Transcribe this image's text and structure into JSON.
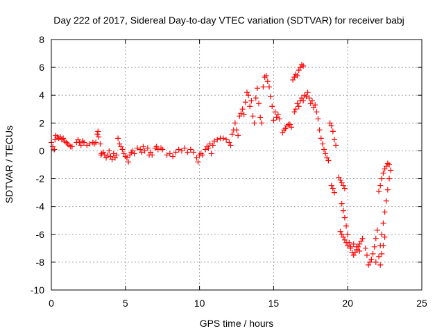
{
  "chart_data": {
    "type": "scatter",
    "title": "Day 222 of 2017, Sidereal Day-to-day VTEC variation (SDTVAR) for receiver babj",
    "xlabel": "GPS time / hours",
    "ylabel": "SDTVAR / TECUs",
    "xlim": [
      0,
      25
    ],
    "ylim": [
      -10,
      8
    ],
    "xticks": [
      0,
      5,
      10,
      15,
      20,
      25
    ],
    "yticks": [
      -10,
      -8,
      -6,
      -4,
      -2,
      0,
      2,
      4,
      6,
      8
    ],
    "xtick_labels": [
      "0",
      "5",
      "10",
      "15",
      "20",
      "25"
    ],
    "ytick_labels": [
      "-10",
      "-8",
      "-6",
      "-4",
      "-2",
      "0",
      "2",
      "4",
      "6",
      "8"
    ],
    "grid": true,
    "marker": "+",
    "color": "#ff0000",
    "series": [
      {
        "name": "babj",
        "points": [
          [
            0.0,
            0.6
          ],
          [
            0.1,
            0.3
          ],
          [
            0.2,
            0.1
          ],
          [
            0.25,
            0.8
          ],
          [
            0.3,
            1.1
          ],
          [
            0.4,
            1.0
          ],
          [
            0.5,
            0.9
          ],
          [
            0.6,
            1.0
          ],
          [
            0.7,
            0.8
          ],
          [
            0.8,
            0.9
          ],
          [
            0.9,
            0.7
          ],
          [
            1.0,
            0.6
          ],
          [
            1.1,
            0.5
          ],
          [
            1.2,
            0.4
          ],
          [
            1.3,
            0.3
          ],
          [
            1.4,
            0.3
          ],
          [
            1.7,
            0.6
          ],
          [
            1.8,
            0.8
          ],
          [
            1.9,
            0.6
          ],
          [
            2.0,
            0.4
          ],
          [
            2.1,
            0.7
          ],
          [
            2.2,
            0.6
          ],
          [
            2.4,
            0.4
          ],
          [
            2.6,
            0.5
          ],
          [
            2.8,
            0.6
          ],
          [
            2.9,
            0.5
          ],
          [
            3.0,
            0.6
          ],
          [
            3.1,
            1.2
          ],
          [
            3.15,
            1.4
          ],
          [
            3.2,
            1.0
          ],
          [
            3.3,
            0.5
          ],
          [
            3.35,
            -0.3
          ],
          [
            3.4,
            -0.2
          ],
          [
            3.5,
            -0.1
          ],
          [
            3.6,
            -0.3
          ],
          [
            3.7,
            -0.5
          ],
          [
            3.8,
            -0.3
          ],
          [
            3.9,
            0.0
          ],
          [
            4.0,
            -0.4
          ],
          [
            4.1,
            -0.6
          ],
          [
            4.2,
            -0.2
          ],
          [
            4.3,
            -0.5
          ],
          [
            4.4,
            -0.3
          ],
          [
            4.5,
            0.9
          ],
          [
            4.6,
            0.5
          ],
          [
            4.7,
            0.3
          ],
          [
            4.8,
            0.1
          ],
          [
            4.9,
            -0.2
          ],
          [
            5.0,
            -0.4
          ],
          [
            5.1,
            -0.5
          ],
          [
            5.2,
            -0.8
          ],
          [
            5.3,
            -0.3
          ],
          [
            5.4,
            -0.1
          ],
          [
            5.5,
            0.0
          ],
          [
            5.6,
            -0.2
          ],
          [
            5.8,
            0.2
          ],
          [
            6.0,
            0.1
          ],
          [
            6.1,
            -0.1
          ],
          [
            6.2,
            0.3
          ],
          [
            6.3,
            0.0
          ],
          [
            6.5,
            0.2
          ],
          [
            6.6,
            -0.3
          ],
          [
            6.7,
            -0.1
          ],
          [
            6.8,
            -0.3
          ],
          [
            7.0,
            0.2
          ],
          [
            7.1,
            0.3
          ],
          [
            7.2,
            0.1
          ],
          [
            7.4,
            0.2
          ],
          [
            7.5,
            0.1
          ],
          [
            7.8,
            -0.3
          ],
          [
            8.0,
            -0.2
          ],
          [
            8.2,
            -0.4
          ],
          [
            8.4,
            -0.1
          ],
          [
            8.6,
            0.1
          ],
          [
            8.8,
            0.0
          ],
          [
            9.0,
            0.2
          ],
          [
            9.2,
            -0.1
          ],
          [
            9.4,
            0.1
          ],
          [
            9.6,
            -0.1
          ],
          [
            9.8,
            -0.5
          ],
          [
            9.9,
            -0.8
          ],
          [
            10.0,
            -0.3
          ],
          [
            10.1,
            -0.2
          ],
          [
            10.2,
            -0.3
          ],
          [
            10.4,
            0.1
          ],
          [
            10.5,
            0.3
          ],
          [
            10.6,
            0.2
          ],
          [
            10.7,
            0.5
          ],
          [
            10.8,
            -0.2
          ],
          [
            10.9,
            0.4
          ],
          [
            11.0,
            0.7
          ],
          [
            11.2,
            0.8
          ],
          [
            11.4,
            0.9
          ],
          [
            11.6,
            0.9
          ],
          [
            11.8,
            0.8
          ],
          [
            12.0,
            0.6
          ],
          [
            12.1,
            0.4
          ],
          [
            12.2,
            1.2
          ],
          [
            12.3,
            1.5
          ],
          [
            12.4,
            2.0
          ],
          [
            12.5,
            1.5
          ],
          [
            12.6,
            1.1
          ],
          [
            12.7,
            2.5
          ],
          [
            12.8,
            2.7
          ],
          [
            12.9,
            3.0
          ],
          [
            13.0,
            2.6
          ],
          [
            13.1,
            3.5
          ],
          [
            13.2,
            4.2
          ],
          [
            13.3,
            4.0
          ],
          [
            13.4,
            3.2
          ],
          [
            13.5,
            3.6
          ],
          [
            13.6,
            2.5
          ],
          [
            13.7,
            2.0
          ],
          [
            13.8,
            3.8
          ],
          [
            13.9,
            4.5
          ],
          [
            14.0,
            3.4
          ],
          [
            14.1,
            2.4
          ],
          [
            14.2,
            2.0
          ],
          [
            14.3,
            4.6
          ],
          [
            14.4,
            5.3
          ],
          [
            14.5,
            5.4
          ],
          [
            14.6,
            5.0
          ],
          [
            14.7,
            4.6
          ],
          [
            14.8,
            3.9
          ],
          [
            14.9,
            3.2
          ],
          [
            15.0,
            2.2
          ],
          [
            15.1,
            2.8
          ],
          [
            15.2,
            2.4
          ],
          [
            15.3,
            2.6
          ],
          [
            15.4,
            2.3
          ],
          [
            15.6,
            1.3
          ],
          [
            15.7,
            1.5
          ],
          [
            15.8,
            1.6
          ],
          [
            15.9,
            1.8
          ],
          [
            16.0,
            1.9
          ],
          [
            16.1,
            1.9
          ],
          [
            16.2,
            1.7
          ],
          [
            16.4,
            2.8
          ],
          [
            16.5,
            3.0
          ],
          [
            16.6,
            3.4
          ],
          [
            16.7,
            3.2
          ],
          [
            16.8,
            3.6
          ],
          [
            16.9,
            3.8
          ],
          [
            17.0,
            3.6
          ],
          [
            17.1,
            4.0
          ],
          [
            17.2,
            3.9
          ],
          [
            17.3,
            4.2
          ],
          [
            17.4,
            3.8
          ],
          [
            17.5,
            3.4
          ],
          [
            16.3,
            5.1
          ],
          [
            16.4,
            5.3
          ],
          [
            16.5,
            5.5
          ],
          [
            16.6,
            5.4
          ],
          [
            16.7,
            5.8
          ],
          [
            16.8,
            6.0
          ],
          [
            16.9,
            6.2
          ],
          [
            17.0,
            6.1
          ],
          [
            17.6,
            3.6
          ],
          [
            17.7,
            3.1
          ],
          [
            17.8,
            3.3
          ],
          [
            17.9,
            2.8
          ],
          [
            18.0,
            2.3
          ],
          [
            18.1,
            1.5
          ],
          [
            18.2,
            0.9
          ],
          [
            18.3,
            0.5
          ],
          [
            18.4,
            0.1
          ],
          [
            18.5,
            -0.2
          ],
          [
            18.6,
            -0.5
          ],
          [
            18.7,
            -0.7
          ],
          [
            18.8,
            2.0
          ],
          [
            18.9,
            1.8
          ],
          [
            19.0,
            1.4
          ],
          [
            19.1,
            0.8
          ],
          [
            19.2,
            0.4
          ],
          [
            18.9,
            -2.5
          ],
          [
            19.0,
            -2.7
          ],
          [
            19.1,
            -3.0
          ],
          [
            19.4,
            -1.9
          ],
          [
            19.5,
            -2.1
          ],
          [
            19.6,
            -2.3
          ],
          [
            19.7,
            -2.5
          ],
          [
            19.8,
            -2.7
          ],
          [
            19.6,
            -3.8
          ],
          [
            19.7,
            -4.3
          ],
          [
            19.8,
            -4.8
          ],
          [
            19.9,
            -5.4
          ],
          [
            20.0,
            -6.0
          ],
          [
            20.1,
            -6.6
          ],
          [
            20.2,
            -7.0
          ],
          [
            20.3,
            -7.3
          ],
          [
            20.4,
            -7.5
          ],
          [
            20.5,
            -7.3
          ],
          [
            20.6,
            -7.1
          ],
          [
            20.7,
            -6.9
          ],
          [
            20.8,
            -6.7
          ],
          [
            20.9,
            -6.5
          ],
          [
            21.0,
            -6.3
          ],
          [
            19.5,
            -5.8
          ],
          [
            19.6,
            -6.0
          ],
          [
            19.7,
            -6.2
          ],
          [
            19.8,
            -6.4
          ],
          [
            19.9,
            -6.6
          ],
          [
            20.0,
            -6.8
          ],
          [
            20.2,
            -6.9
          ],
          [
            20.4,
            -6.7
          ],
          [
            20.6,
            -6.9
          ],
          [
            20.8,
            -7.2
          ],
          [
            21.2,
            -7.0
          ],
          [
            21.3,
            -7.5
          ],
          [
            21.4,
            -8.2
          ],
          [
            21.5,
            -8.0
          ],
          [
            21.6,
            -7.8
          ],
          [
            21.7,
            -7.4
          ],
          [
            21.8,
            -6.9
          ],
          [
            21.9,
            -6.3
          ],
          [
            22.0,
            -5.7
          ],
          [
            21.9,
            -8.0
          ],
          [
            22.1,
            -7.6
          ],
          [
            22.2,
            -6.8
          ],
          [
            22.3,
            -6.0
          ],
          [
            22.4,
            -5.2
          ],
          [
            22.5,
            -4.4
          ],
          [
            22.6,
            -3.6
          ],
          [
            22.7,
            -2.8
          ],
          [
            22.8,
            -2.0
          ],
          [
            22.9,
            -1.4
          ],
          [
            22.6,
            -1.1
          ],
          [
            22.7,
            -0.9
          ],
          [
            22.8,
            -1.0
          ],
          [
            22.1,
            -2.9
          ],
          [
            22.2,
            -2.5
          ],
          [
            22.3,
            -2.0
          ],
          [
            22.4,
            -1.6
          ],
          [
            22.5,
            -1.3
          ],
          [
            22.2,
            -8.2
          ],
          [
            22.3,
            -7.4
          ],
          [
            22.4,
            -6.8
          ],
          [
            22.5,
            -6.2
          ]
        ]
      }
    ]
  }
}
